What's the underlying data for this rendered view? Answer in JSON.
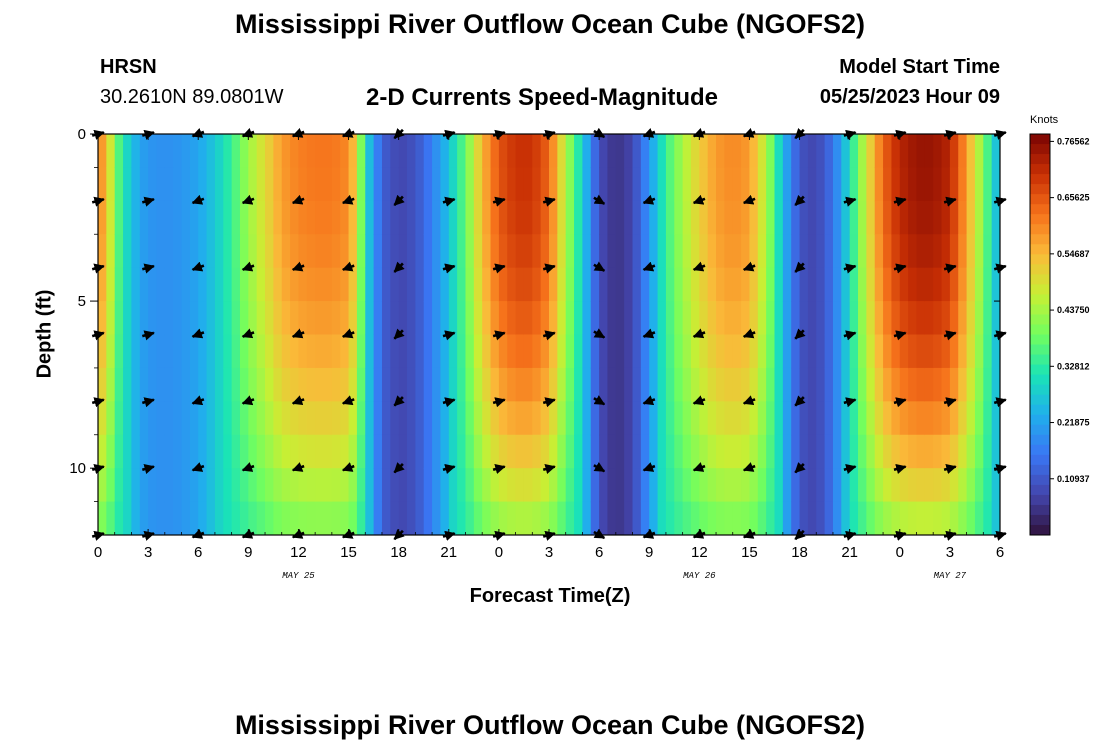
{
  "title": "Mississippi River Outflow Ocean Cube (NGOFS2)",
  "title_bottom": "Mississippi River Outflow Ocean Cube (NGOFS2)",
  "station": {
    "name": "HRSN",
    "coords": "30.2610N  89.0801W"
  },
  "model_start": {
    "label": "Model Start Time",
    "value": "05/25/2023 Hour 09"
  },
  "chart_data": {
    "type": "heatmap",
    "title": "2-D Currents Speed-Magnitude",
    "xlabel": "Forecast Time(Z)",
    "ylabel": "Depth (ft)",
    "ylim": [
      0,
      12
    ],
    "y_ticks": [
      "0",
      "5",
      "10"
    ],
    "y_tick_values": [
      0,
      5,
      10
    ],
    "x_tick_labels": [
      "0",
      "3",
      "6",
      "9",
      "12",
      "15",
      "18",
      "21",
      "0",
      "3",
      "6",
      "9",
      "12",
      "15",
      "18",
      "21",
      "0",
      "3",
      "6"
    ],
    "x_range_hours": [
      0,
      54
    ],
    "date_labels": [
      {
        "text": "MAY 25",
        "hour": 12
      },
      {
        "text": "MAY 26",
        "hour": 36
      },
      {
        "text": "MAY 27",
        "hour": 51
      }
    ],
    "colorbar": {
      "unit": "Knots",
      "ticks": [
        "0.76562",
        "0.65625",
        "0.54687",
        "0.43750",
        "0.32812",
        "0.21875",
        "0.10937"
      ],
      "tick_values": [
        0.76562,
        0.65625,
        0.54687,
        0.4375,
        0.32812,
        0.21875,
        0.10937
      ],
      "range": [
        0,
        0.78
      ]
    },
    "surface_speed_by_hour": [
      [
        0,
        0.6
      ],
      [
        0.5,
        0.56
      ],
      [
        1,
        0.4
      ],
      [
        1.5,
        0.32
      ],
      [
        2,
        0.26
      ],
      [
        2.5,
        0.22
      ],
      [
        3,
        0.2
      ],
      [
        4,
        0.19
      ],
      [
        5,
        0.2
      ],
      [
        6,
        0.22
      ],
      [
        7,
        0.27
      ],
      [
        8,
        0.34
      ],
      [
        9,
        0.43
      ],
      [
        10,
        0.5
      ],
      [
        11,
        0.58
      ],
      [
        12,
        0.61
      ],
      [
        13,
        0.62
      ],
      [
        14,
        0.62
      ],
      [
        15,
        0.6
      ],
      [
        15.5,
        0.5
      ],
      [
        16,
        0.3
      ],
      [
        17,
        0.12
      ],
      [
        18,
        0.08
      ],
      [
        19,
        0.1
      ],
      [
        20,
        0.17
      ],
      [
        21,
        0.26
      ],
      [
        22,
        0.38
      ],
      [
        23,
        0.55
      ],
      [
        24,
        0.66
      ],
      [
        25,
        0.7
      ],
      [
        26,
        0.7
      ],
      [
        27,
        0.64
      ],
      [
        28,
        0.45
      ],
      [
        29,
        0.28
      ],
      [
        30,
        0.09
      ],
      [
        31,
        0.05
      ],
      [
        32,
        0.08
      ],
      [
        33,
        0.2
      ],
      [
        34,
        0.34
      ],
      [
        35,
        0.44
      ],
      [
        36,
        0.52
      ],
      [
        37,
        0.58
      ],
      [
        38,
        0.6
      ],
      [
        39,
        0.58
      ],
      [
        40,
        0.45
      ],
      [
        41,
        0.25
      ],
      [
        42,
        0.1
      ],
      [
        43,
        0.08
      ],
      [
        44,
        0.15
      ],
      [
        45,
        0.3
      ],
      [
        46,
        0.48
      ],
      [
        47,
        0.64
      ],
      [
        48,
        0.72
      ],
      [
        49,
        0.75
      ],
      [
        50,
        0.75
      ],
      [
        51,
        0.72
      ],
      [
        52,
        0.58
      ],
      [
        53,
        0.4
      ],
      [
        54,
        0.22
      ]
    ],
    "arrows": {
      "depths_ft": [
        0,
        2,
        4,
        6,
        8,
        10,
        12
      ],
      "hours": [
        0,
        3,
        6,
        9,
        12,
        15,
        18,
        21,
        24,
        27,
        30,
        33,
        36,
        39,
        42,
        45,
        48,
        51,
        54
      ],
      "directions_deg": [
        15,
        15,
        200,
        200,
        200,
        200,
        225,
        15,
        15,
        15,
        330,
        200,
        200,
        200,
        225,
        15,
        15,
        15,
        15
      ]
    }
  }
}
